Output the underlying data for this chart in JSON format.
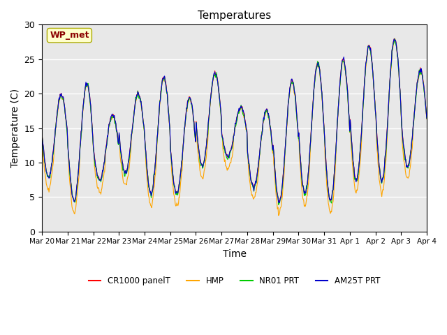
{
  "title": "Temperatures",
  "xlabel": "Time",
  "ylabel": "Temperature (C)",
  "ylim": [
    0,
    30
  ],
  "yticks": [
    0,
    5,
    10,
    15,
    20,
    25,
    30
  ],
  "annotation_text": "WP_met",
  "annotation_color": "#8B0000",
  "annotation_bg": "#FFFFCC",
  "bg_color": "#E8E8E8",
  "legend_entries": [
    "CR1000 panelT",
    "HMP",
    "NR01 PRT",
    "AM25T PRT"
  ],
  "line_colors": [
    "#FF0000",
    "#FFA500",
    "#00CC00",
    "#0000CC"
  ],
  "x_tick_labels": [
    "Mar 20",
    "Mar 21",
    "Mar 22",
    "Mar 23",
    "Mar 24",
    "Mar 25",
    "Mar 26",
    "Mar 27",
    "Mar 28",
    "Mar 29",
    "Mar 30",
    "Mar 31",
    "Apr 1",
    "Apr 2",
    "Apr 3",
    "Apr 4"
  ],
  "num_days": 15,
  "points_per_day": 48
}
